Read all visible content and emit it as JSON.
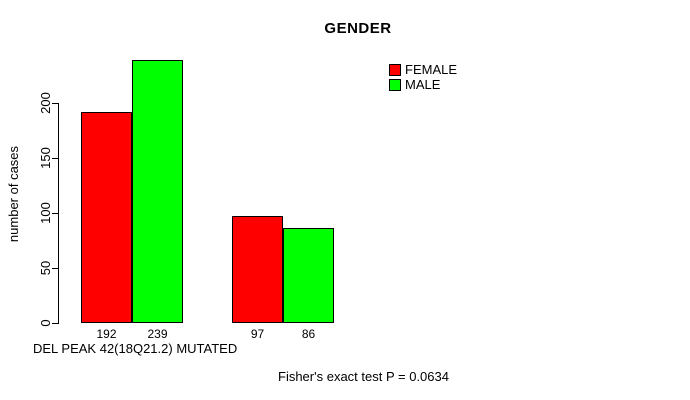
{
  "chart_data": {
    "type": "bar",
    "title": "GENDER",
    "ylabel": "number of cases",
    "xlabel": "DEL PEAK 42(18Q21.2) MUTATED",
    "annotation": "Fisher's exact test P = 0.0634",
    "ylim": [
      0,
      200
    ],
    "yticks": [
      0,
      50,
      100,
      150,
      200
    ],
    "grid": false,
    "legend_position": "top-right",
    "axis_color": "#000000",
    "background_color": "#ffffff",
    "series": [
      {
        "name": "FEMALE",
        "color": "#ff0000",
        "values": [
          192,
          97
        ]
      },
      {
        "name": "MALE",
        "color": "#00ff00",
        "values": [
          239,
          86
        ]
      }
    ],
    "bar_value_labels": [
      "192",
      "239",
      "97",
      "86"
    ]
  }
}
